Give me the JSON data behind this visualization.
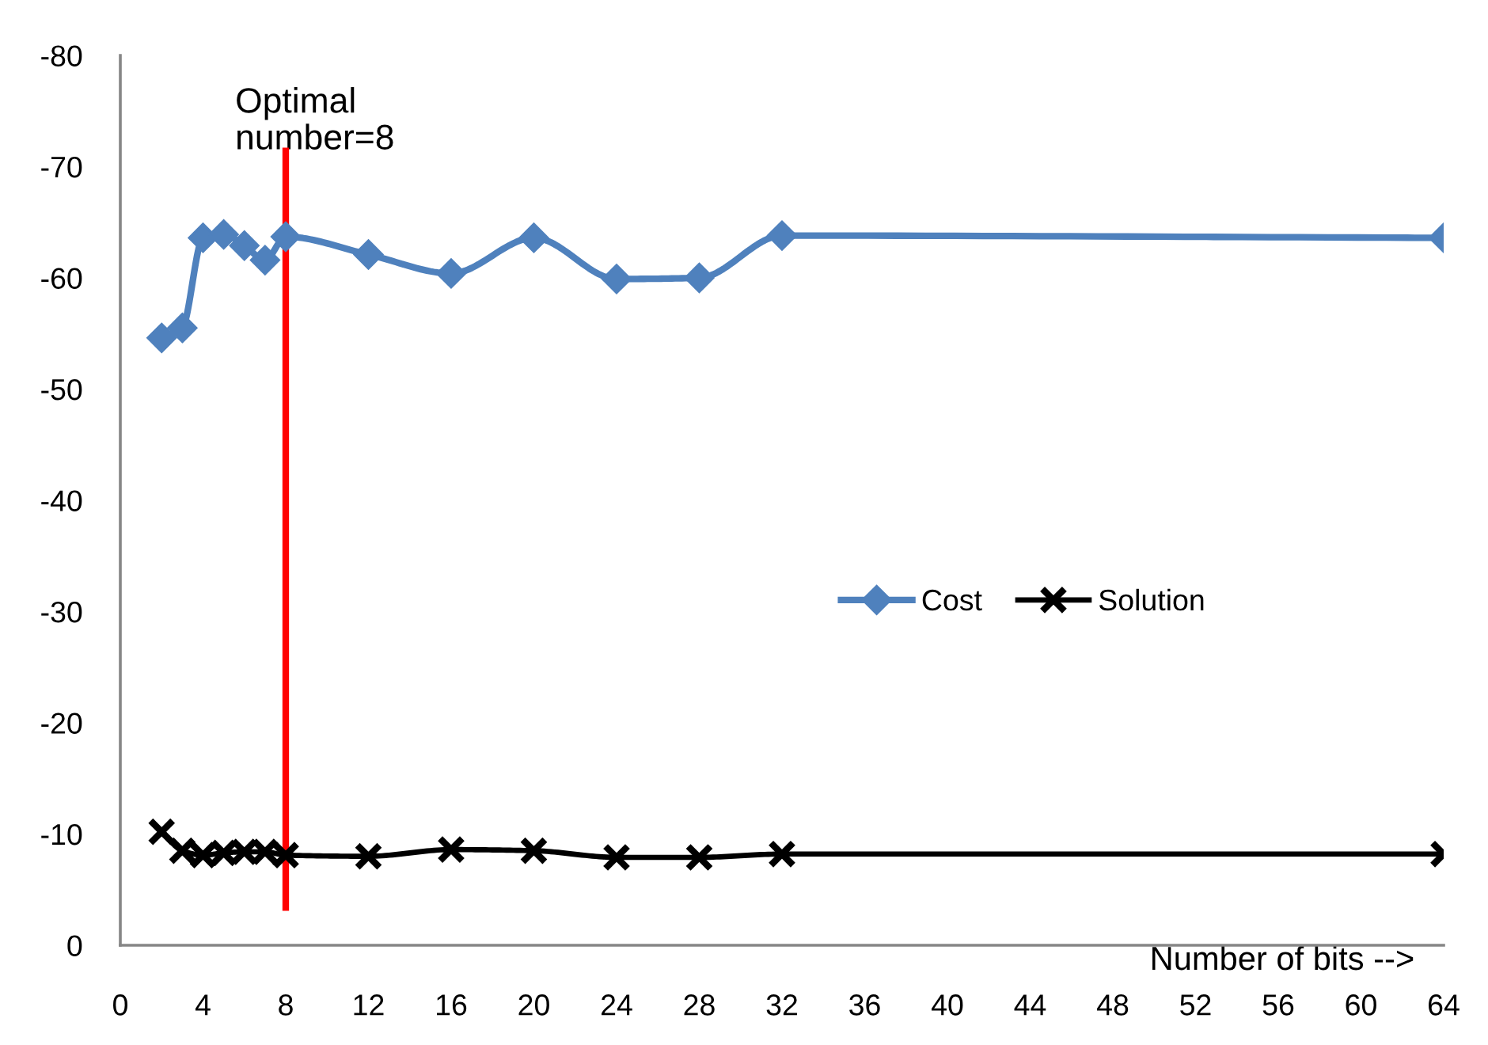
{
  "chart_data": {
    "type": "line",
    "xlabel": "Number of bits -->",
    "xlim": [
      0,
      64
    ],
    "xticks": [
      0,
      4,
      8,
      12,
      16,
      20,
      24,
      28,
      32,
      36,
      40,
      44,
      48,
      52,
      56,
      60,
      64
    ],
    "ylim": [
      0,
      -80
    ],
    "yticks": [
      0,
      -10,
      -20,
      -30,
      -40,
      -50,
      -60,
      -70,
      -80
    ],
    "grid": false,
    "legend": "center right",
    "series": [
      {
        "name": "Cost",
        "color": "#4f81bd",
        "marker": "diamond",
        "x": [
          2,
          3,
          4,
          5,
          6,
          7,
          8,
          12,
          16,
          20,
          24,
          28,
          32,
          64
        ],
        "values": [
          -54.6,
          -55.5,
          -63.6,
          -63.9,
          -62.9,
          -61.6,
          -63.7,
          -62.1,
          -60.4,
          -63.6,
          -59.9,
          -60.0,
          -63.8,
          -63.6
        ]
      },
      {
        "name": "Solution",
        "color": "#000000",
        "marker": "cross",
        "x": [
          2,
          3,
          4,
          5,
          6,
          7,
          8,
          12,
          16,
          20,
          24,
          28,
          32,
          64
        ],
        "values": [
          -10.2,
          -8.5,
          -8.1,
          -8.3,
          -8.4,
          -8.4,
          -8.1,
          -8.0,
          -8.6,
          -8.5,
          -7.9,
          -7.9,
          -8.2,
          -8.2
        ]
      },
      {
        "color": "#ff0000",
        "marker": "none",
        "x": [
          8,
          8
        ],
        "values": [
          -3.1,
          -71.7
        ]
      }
    ],
    "annotations": [
      {
        "text": "Optimal number=8",
        "x": 8,
        "y": -71.7
      }
    ]
  }
}
